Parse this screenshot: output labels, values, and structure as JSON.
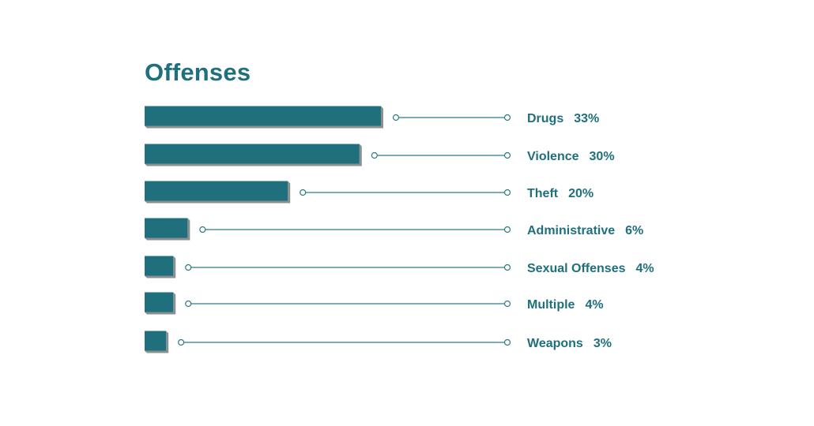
{
  "colors": {
    "bar": "#1f6f7c",
    "bar_shadow": "#8a8f91",
    "leader": "#2e7b86",
    "text": "#1f6f7c"
  },
  "chart_data": {
    "type": "bar",
    "orientation": "horizontal",
    "title": "Offenses",
    "categories": [
      "Drugs",
      "Violence",
      "Theft",
      "Administrative",
      "Sexual Offenses",
      "Multiple",
      "Weapons"
    ],
    "values": [
      33,
      30,
      20,
      6,
      4,
      4,
      3
    ],
    "value_labels": [
      "33%",
      "30%",
      "20%",
      "6%",
      "4%",
      "4%",
      "3%"
    ],
    "unit": "%",
    "grid": false,
    "legend": "none"
  }
}
